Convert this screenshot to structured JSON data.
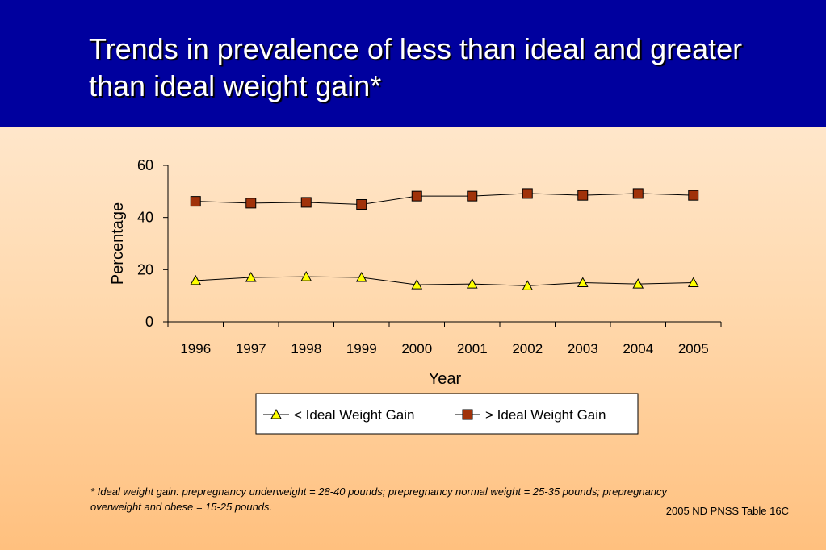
{
  "title": "Trends in prevalence of less than ideal and greater than ideal weight gain*",
  "footnote": "*  Ideal weight gain: prepregnancy underweight = 28-40 pounds; prepregnancy normal weight = 25-35 pounds; prepregnancy overweight and obese = 15-25 pounds.",
  "source": "2005 ND PNSS Table 16C",
  "chart_data": {
    "type": "line",
    "categories": [
      "1996",
      "1997",
      "1998",
      "1999",
      "2000",
      "2001",
      "2002",
      "2003",
      "2004",
      "2005"
    ],
    "series": [
      {
        "name": "< Ideal Weight Gain",
        "marker": "triangle",
        "color": "#FFFF00",
        "values": [
          15.8,
          17.0,
          17.3,
          17.0,
          14.2,
          14.5,
          13.8,
          15.0,
          14.5,
          15.0
        ]
      },
      {
        "name": "> Ideal Weight Gain",
        "marker": "square",
        "color": "#A0320A",
        "values": [
          46.2,
          45.5,
          45.8,
          45.0,
          48.2,
          48.2,
          49.2,
          48.5,
          49.2,
          48.5
        ]
      }
    ],
    "xlabel": "Year",
    "ylabel": "Percentage",
    "ylim": [
      0,
      60
    ],
    "yticks": [
      "0",
      "20",
      "40",
      "60"
    ],
    "grid": false,
    "legend": "bottom"
  }
}
